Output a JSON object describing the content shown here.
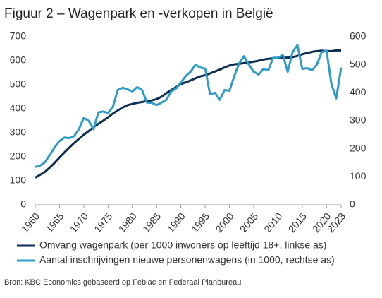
{
  "chart_data": {
    "type": "line",
    "title": "Figuur 2 – Wagenpark en -verkopen in België",
    "x": [
      1960,
      1961,
      1962,
      1963,
      1964,
      1965,
      1966,
      1967,
      1968,
      1969,
      1970,
      1971,
      1972,
      1973,
      1974,
      1975,
      1976,
      1977,
      1978,
      1979,
      1980,
      1981,
      1982,
      1983,
      1984,
      1985,
      1986,
      1987,
      1988,
      1989,
      1990,
      1991,
      1992,
      1993,
      1994,
      1995,
      1996,
      1997,
      1998,
      1999,
      2000,
      2001,
      2002,
      2003,
      2004,
      2005,
      2006,
      2007,
      2008,
      2009,
      2010,
      2011,
      2012,
      2013,
      2014,
      2015,
      2016,
      2017,
      2018,
      2019,
      2020,
      2021,
      2022,
      2023
    ],
    "xlim": [
      1960,
      2023
    ],
    "xticks": [
      1960,
      1965,
      1970,
      1975,
      1980,
      1985,
      1990,
      1995,
      2000,
      2005,
      2010,
      2015,
      2020,
      2023
    ],
    "ylim": [
      0,
      700
    ],
    "yticks": [
      0,
      100,
      200,
      300,
      400,
      500,
      600,
      700
    ],
    "y2lim": [
      0,
      600
    ],
    "y2ticks": [
      0,
      100,
      200,
      300,
      400,
      500,
      600
    ],
    "series": [
      {
        "name": "Omvang wagenpark (per 1000 inwoners op leeftijd 18+, linkse as)",
        "color": "#0d2d52",
        "values": [
          113,
          125,
          137,
          155,
          175,
          197,
          218,
          238,
          257,
          275,
          292,
          307,
          323,
          337,
          350,
          365,
          380,
          393,
          405,
          415,
          420,
          425,
          428,
          432,
          435,
          440,
          450,
          465,
          478,
          490,
          503,
          510,
          518,
          527,
          535,
          540,
          547,
          555,
          563,
          572,
          580,
          585,
          587,
          590,
          593,
          596,
          600,
          605,
          608,
          610,
          612,
          613,
          613,
          615,
          620,
          627,
          632,
          637,
          640,
          642,
          640,
          640,
          643,
          643
        ]
      },
      {
        "name": "Aantal inschrijvingen nieuwe personenwagens (in 1000, rechtse as)",
        "color": "#2d9cc8",
        "axis": "y2",
        "values": [
          135,
          140,
          152,
          178,
          205,
          228,
          240,
          238,
          245,
          270,
          310,
          300,
          270,
          330,
          333,
          328,
          350,
          410,
          418,
          412,
          405,
          420,
          410,
          365,
          364,
          356,
          365,
          375,
          405,
          415,
          437,
          460,
          475,
          500,
          490,
          486,
          395,
          400,
          375,
          410,
          407,
          460,
          505,
          530,
          500,
          475,
          465,
          485,
          480,
          525,
          525,
          535,
          475,
          545,
          570,
          485,
          488,
          480,
          500,
          545,
          550,
          431,
          380,
          490
        ]
      }
    ],
    "source": "Bron: KBC Economics gebaseerd op Febiac en Federaal Planbureau"
  }
}
